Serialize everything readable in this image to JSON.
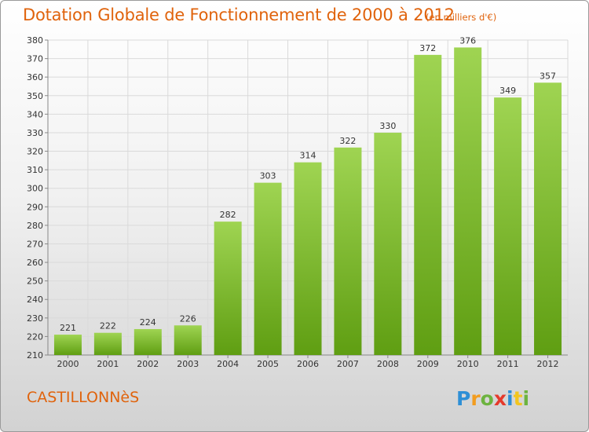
{
  "title": "Dotation Globale de Fonctionnement de 2000 à 2012",
  "subtitle": "(en milliers d'€)",
  "commune": "CASTILLONNèS",
  "logo_text": "Proxiti",
  "colors": {
    "title": "#e0630c",
    "bar_top": "#9fd452",
    "bar_bottom": "#5f9e12",
    "grid": "#dadada"
  },
  "chart_data": {
    "type": "bar",
    "categories": [
      "2000",
      "2001",
      "2002",
      "2003",
      "2004",
      "2005",
      "2006",
      "2007",
      "2008",
      "2009",
      "2010",
      "2011",
      "2012"
    ],
    "values": [
      221,
      222,
      224,
      226,
      282,
      303,
      314,
      322,
      330,
      372,
      376,
      349,
      357
    ],
    "ylim": [
      210,
      380
    ],
    "yticks": [
      210,
      220,
      230,
      240,
      250,
      260,
      270,
      280,
      290,
      300,
      310,
      320,
      330,
      340,
      350,
      360,
      370,
      380
    ],
    "grid": true,
    "data_labels": true
  }
}
